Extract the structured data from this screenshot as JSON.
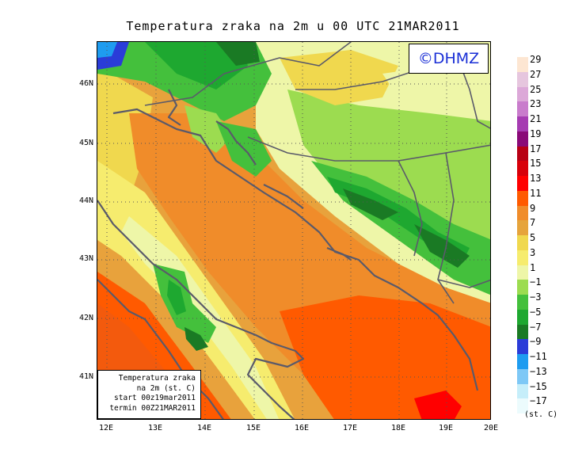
{
  "title": "Temperatura zraka na 2m u 00 UTC 21MAR2011",
  "credit": "©DHMZ",
  "info_box": {
    "line1": "Temperatura zraka",
    "line2": "na 2m (st. C)",
    "line3": "start 00z19mar2011",
    "line4": "termin 00Z21MAR2011"
  },
  "lat_labels": [
    "46N",
    "45N",
    "44N",
    "43N",
    "42N",
    "41N"
  ],
  "lon_labels": [
    "12E",
    "13E",
    "14E",
    "15E",
    "16E",
    "17E",
    "18E",
    "19E",
    "20E"
  ],
  "legend": {
    "ticks": [
      "29",
      "27",
      "25",
      "23",
      "21",
      "19",
      "17",
      "15",
      "13",
      "11",
      "9",
      "7",
      "5",
      "3",
      "1",
      "−1",
      "−3",
      "−5",
      "−7",
      "−9",
      "−11",
      "−13",
      "−15",
      "−17"
    ],
    "colors": [
      "#fde6d2",
      "#e6c6de",
      "#dca8d8",
      "#c97ccc",
      "#a63cb2",
      "#8a0a78",
      "#b80014",
      "#d8000a",
      "#ff0000",
      "#ff5a00",
      "#f08c2a",
      "#e6a43c",
      "#f0d84e",
      "#f6ec6e",
      "#eef6a8",
      "#9cdc50",
      "#44c03c",
      "#1ea830",
      "#1a7a24",
      "#2a3cd8",
      "#1e9cf0",
      "#7ec8f6",
      "#c6eefa",
      "#ecfbfd"
    ],
    "unit": "(st. C)"
  }
}
